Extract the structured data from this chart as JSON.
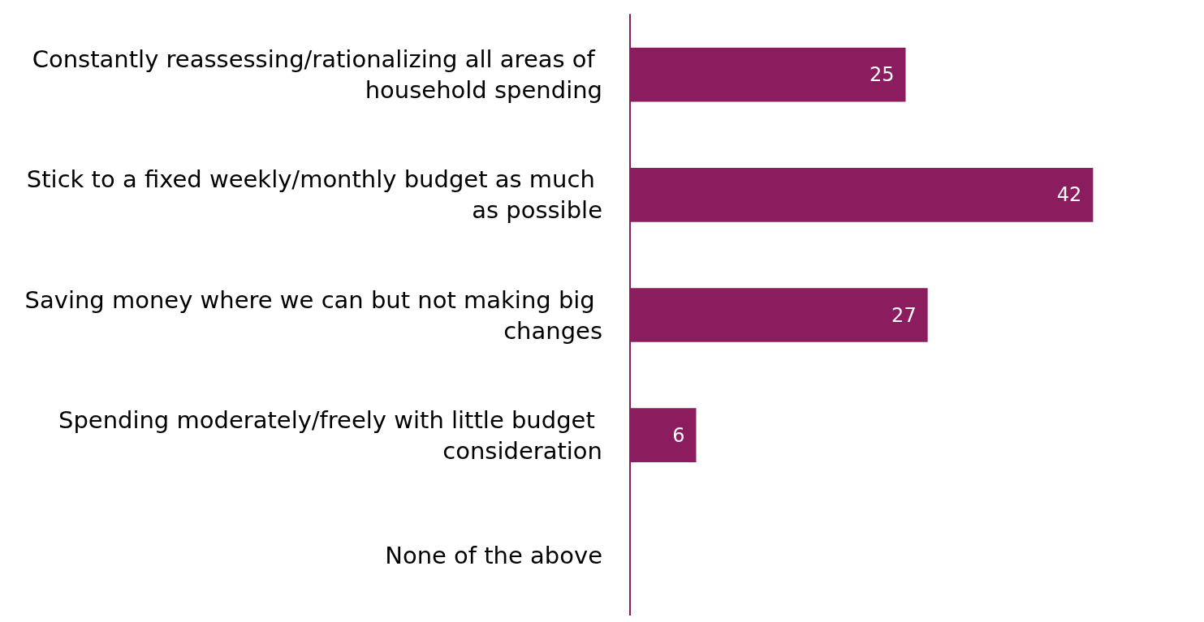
{
  "chart_data": {
    "type": "bar",
    "orientation": "horizontal",
    "categories": [
      "Constantly reassessing/rationalizing all areas of household spending",
      "Stick to a fixed weekly/monthly budget as much as possible",
      "Saving money where we can but not making big changes",
      "Spending moderately/freely with little budget consideration",
      "None of the above"
    ],
    "values": [
      25,
      42,
      27,
      6,
      null
    ],
    "color": "#8b1c5e",
    "data_labels": true,
    "tick_labels": "y"
  }
}
